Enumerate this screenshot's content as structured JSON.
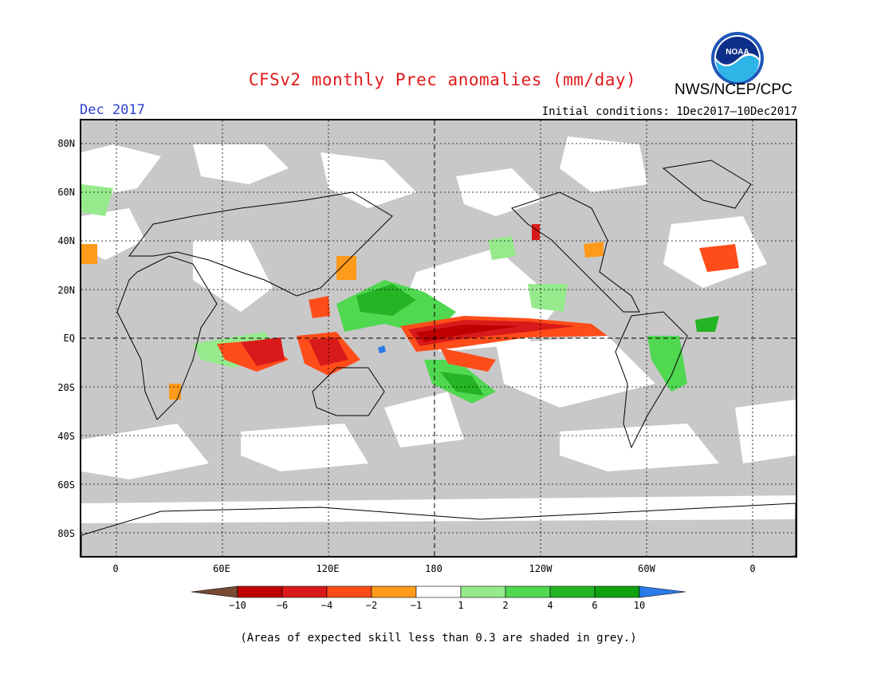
{
  "header": {
    "title": "CFSv2 monthly Prec anomalies (mm/day)",
    "agency": "NWS/NCEP/CPC",
    "logo_text": "NOAA",
    "month": "Dec 2017",
    "initial_conditions": "Initial conditions: 1Dec2017–10Dec2017"
  },
  "map": {
    "lat_labels": [
      "80N",
      "60N",
      "40N",
      "20N",
      "EQ",
      "20S",
      "40S",
      "60S",
      "80S"
    ],
    "lon_labels": [
      "0",
      "60E",
      "120E",
      "180",
      "120W",
      "60W",
      "0"
    ],
    "lat_range": [
      -90,
      90
    ],
    "lon_range": [
      -20,
      380
    ],
    "colors": {
      "skill_grey": "#c8c8c8",
      "dry_extreme": "#7a4a32",
      "dry_6_10": "#c00000",
      "dry_4_6": "#d81a1a",
      "dry_2_4": "#ff4d1a",
      "dry_1_2": "#ff9a1a",
      "neutral": "#ffffff",
      "wet_1_2": "#96ea8c",
      "wet_2_4": "#50d850",
      "wet_4_6": "#24b424",
      "wet_6_10": "#10a010",
      "wet_extreme": "#2a7ae8"
    }
  },
  "colorbar": {
    "labels": [
      "−10",
      "−6",
      "−4",
      "−2",
      "−1",
      "1",
      "2",
      "4",
      "6",
      "10"
    ]
  },
  "footnote": "(Areas of expected skill less than 0.3 are shaded in grey.)"
}
